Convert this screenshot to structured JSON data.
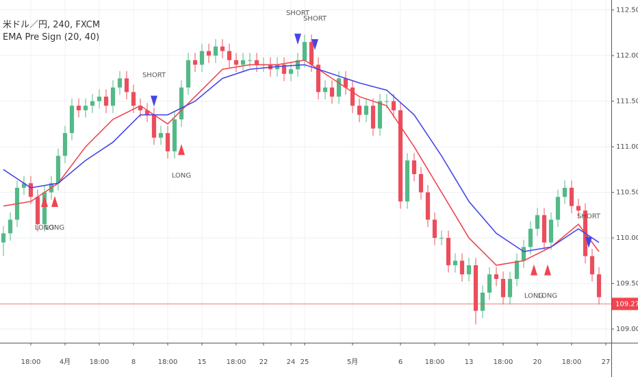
{
  "chart_data": {
    "type": "candlestick",
    "title": "米ドル／円, 240, FXCM",
    "subtitle": "EMA Pre Sign (20, 40)",
    "x": [
      0,
      1,
      2,
      3,
      4,
      5,
      6,
      7,
      8,
      9,
      10,
      11,
      12,
      13,
      14,
      15,
      16,
      17,
      18,
      19,
      20,
      21,
      22,
      23,
      24,
      25,
      26,
      27,
      28,
      29,
      30,
      31,
      32,
      33,
      34,
      35,
      36,
      37,
      38,
      39,
      40,
      41,
      42,
      43,
      44,
      45,
      46,
      47,
      48,
      49,
      50,
      51,
      52,
      53,
      54,
      55,
      56,
      57,
      58,
      59,
      60,
      61,
      62,
      63,
      64,
      65,
      66,
      67,
      68,
      69,
      70,
      71,
      72,
      73,
      74,
      75,
      76,
      77,
      78,
      79,
      80,
      81,
      82,
      83,
      84,
      85,
      86,
      87
    ],
    "open": [
      109.95,
      110.05,
      110.2,
      110.55,
      110.6,
      110.45,
      110.15,
      110.5,
      110.6,
      110.9,
      111.15,
      111.45,
      111.4,
      111.45,
      111.5,
      111.55,
      111.45,
      111.65,
      111.75,
      111.6,
      111.45,
      111.4,
      111.35,
      111.1,
      111.15,
      110.95,
      111.3,
      111.65,
      111.95,
      111.9,
      112.05,
      112.0,
      112.1,
      112.05,
      111.95,
      111.9,
      111.95,
      111.95,
      111.9,
      111.9,
      111.85,
      111.9,
      111.8,
      111.85,
      111.95,
      112.15,
      111.9,
      111.6,
      111.65,
      111.55,
      111.75,
      111.65,
      111.45,
      111.35,
      111.45,
      111.2,
      111.5,
      111.5,
      111.4,
      110.4,
      110.85,
      110.7,
      110.5,
      110.2,
      110.0,
      110.0,
      109.7,
      109.75,
      109.6,
      109.7,
      109.2,
      109.4,
      109.6,
      109.55,
      109.35,
      109.55,
      109.75,
      109.9,
      110.1,
      110.25,
      109.95,
      110.2,
      110.45,
      110.55,
      110.35,
      110.3,
      109.8,
      109.6
    ],
    "high": [
      110.13,
      110.28,
      110.63,
      110.68,
      110.68,
      110.53,
      110.58,
      110.68,
      110.98,
      111.23,
      111.53,
      111.53,
      111.53,
      111.58,
      111.63,
      111.63,
      111.73,
      111.83,
      111.83,
      111.68,
      111.53,
      111.48,
      111.43,
      111.23,
      111.23,
      111.38,
      111.73,
      112.03,
      112.03,
      112.13,
      112.13,
      112.18,
      112.18,
      112.13,
      112.03,
      112.03,
      112.03,
      112.03,
      111.98,
      111.98,
      111.98,
      111.98,
      111.93,
      112.03,
      112.23,
      112.23,
      111.98,
      111.73,
      111.73,
      111.83,
      111.83,
      111.73,
      111.53,
      111.53,
      111.53,
      111.58,
      111.58,
      111.58,
      111.48,
      110.93,
      110.93,
      110.78,
      110.58,
      110.28,
      110.08,
      110.08,
      109.83,
      109.83,
      109.78,
      109.78,
      109.48,
      109.68,
      109.68,
      109.63,
      109.63,
      109.83,
      109.98,
      110.18,
      110.33,
      110.33,
      110.28,
      110.53,
      110.63,
      110.63,
      110.43,
      110.38,
      109.88,
      109.68
    ],
    "low": [
      109.8,
      109.97,
      110.12,
      110.47,
      110.37,
      110.07,
      110.07,
      110.42,
      110.52,
      110.82,
      111.07,
      111.32,
      111.32,
      111.37,
      111.42,
      111.37,
      111.37,
      111.57,
      111.52,
      111.37,
      111.32,
      111.27,
      111.02,
      111.02,
      110.87,
      110.87,
      111.22,
      111.57,
      111.82,
      111.82,
      111.92,
      111.92,
      111.97,
      111.87,
      111.82,
      111.82,
      111.87,
      111.82,
      111.82,
      111.77,
      111.77,
      111.72,
      111.72,
      111.77,
      111.87,
      111.82,
      111.52,
      111.52,
      111.47,
      111.47,
      111.57,
      111.37,
      111.27,
      111.27,
      111.12,
      111.12,
      111.42,
      111.32,
      110.32,
      110.32,
      110.62,
      110.42,
      110.12,
      109.92,
      109.92,
      109.62,
      109.62,
      109.52,
      109.52,
      109.05,
      109.12,
      109.32,
      109.47,
      109.27,
      109.27,
      109.47,
      109.67,
      109.82,
      110.02,
      109.87,
      109.87,
      110.12,
      110.37,
      110.27,
      110.22,
      109.72,
      109.52,
      109.27
    ],
    "close": [
      110.05,
      110.2,
      110.55,
      110.6,
      110.45,
      110.15,
      110.5,
      110.6,
      110.9,
      111.15,
      111.45,
      111.4,
      111.45,
      111.5,
      111.55,
      111.45,
      111.65,
      111.75,
      111.6,
      111.45,
      111.4,
      111.35,
      111.1,
      111.15,
      110.95,
      111.3,
      111.65,
      111.95,
      111.9,
      112.05,
      112.0,
      112.1,
      112.05,
      111.95,
      111.9,
      111.95,
      111.95,
      111.9,
      111.9,
      111.85,
      111.9,
      111.8,
      111.85,
      111.95,
      112.15,
      111.9,
      111.6,
      111.65,
      111.55,
      111.75,
      111.65,
      111.45,
      111.35,
      111.45,
      111.2,
      111.5,
      111.5,
      111.4,
      110.4,
      110.85,
      110.7,
      110.5,
      110.2,
      110.0,
      110.0,
      109.7,
      109.75,
      109.6,
      109.7,
      109.2,
      109.4,
      109.6,
      109.55,
      109.35,
      109.55,
      109.75,
      109.9,
      110.1,
      110.25,
      109.95,
      110.2,
      110.45,
      110.55,
      110.35,
      110.3,
      109.8,
      109.6,
      109.35
    ],
    "up_color": "#53b987",
    "down_color": "#eb4d5c",
    "series": [
      {
        "color": "#f0454f",
        "x": [
          0,
          4,
          8,
          12,
          16,
          20,
          24,
          28,
          32,
          36,
          40,
          44,
          48,
          52,
          56,
          60,
          64,
          68,
          72,
          76,
          80,
          84,
          87
        ],
        "values": [
          110.35,
          110.4,
          110.6,
          111.0,
          111.3,
          111.45,
          111.25,
          111.55,
          111.85,
          111.9,
          111.9,
          111.95,
          111.75,
          111.55,
          111.45,
          111.0,
          110.5,
          110.0,
          109.7,
          109.75,
          109.9,
          110.15,
          109.85
        ]
      },
      {
        "color": "#4545e8",
        "x": [
          0,
          4,
          8,
          12,
          16,
          20,
          24,
          28,
          32,
          36,
          40,
          44,
          48,
          52,
          56,
          60,
          64,
          68,
          72,
          76,
          80,
          84,
          87
        ],
        "values": [
          110.75,
          110.55,
          110.6,
          110.85,
          111.05,
          111.35,
          111.35,
          111.5,
          111.75,
          111.85,
          111.88,
          111.9,
          111.8,
          111.7,
          111.62,
          111.35,
          110.9,
          110.4,
          110.05,
          109.85,
          109.9,
          110.1,
          109.95
        ]
      }
    ],
    "signals": [
      {
        "label": "LONG",
        "x": 6,
        "y": 110.4,
        "color": "#f0454f"
      },
      {
        "label": "LONG",
        "x": 7.5,
        "y": 110.4,
        "color": "#f0454f"
      },
      {
        "label": "SHORT",
        "x": 22,
        "y": 111.5,
        "color": "#4545e8"
      },
      {
        "label": "LONG",
        "x": 26,
        "y": 110.97,
        "color": "#f0454f"
      },
      {
        "label": "SHORT",
        "x": 43,
        "y": 112.18,
        "color": "#4545e8"
      },
      {
        "label": "SHORT",
        "x": 45.5,
        "y": 112.12,
        "color": "#4545e8"
      },
      {
        "label": "LONG",
        "x": 77.5,
        "y": 109.65,
        "color": "#f0454f"
      },
      {
        "label": "LONG",
        "x": 79.5,
        "y": 109.65,
        "color": "#f0454f"
      },
      {
        "label": "SHORT",
        "x": 85.5,
        "y": 109.95,
        "color": "#4545e8"
      }
    ],
    "last_price": 109.276,
    "last_price_color": "#f0454f",
    "xlim": [
      -0.5,
      88.8
    ],
    "xticks": [
      {
        "value": 4,
        "label": "18:00"
      },
      {
        "value": 9,
        "label": "4月"
      },
      {
        "value": 14,
        "label": "18:00"
      },
      {
        "value": 19,
        "label": "8"
      },
      {
        "value": 24,
        "label": "18:00"
      },
      {
        "value": 29,
        "label": "15"
      },
      {
        "value": 34,
        "label": "18:00"
      },
      {
        "value": 38,
        "label": "22"
      },
      {
        "value": 42,
        "label": "24"
      },
      {
        "value": 44,
        "label": "25"
      },
      {
        "value": 51,
        "label": "5月"
      },
      {
        "value": 58,
        "label": "6"
      },
      {
        "value": 63,
        "label": "18:00"
      },
      {
        "value": 68,
        "label": "13"
      },
      {
        "value": 73,
        "label": "18:00"
      },
      {
        "value": 78,
        "label": "20"
      },
      {
        "value": 83,
        "label": "18:00"
      },
      {
        "value": 88,
        "label": "27"
      }
    ],
    "ylim": [
      108.85,
      112.61
    ],
    "yticks": [
      {
        "value": 109,
        "label": "109.000"
      },
      {
        "value": 109.5,
        "label": "109.500"
      },
      {
        "value": 110,
        "label": "110.000"
      },
      {
        "value": 110.5,
        "label": "110.500"
      },
      {
        "value": 111,
        "label": "111.000"
      },
      {
        "value": 111.5,
        "label": "111.500"
      },
      {
        "value": 112,
        "label": "112.000"
      },
      {
        "value": 112.5,
        "label": "112.500"
      }
    ],
    "grid": true
  }
}
